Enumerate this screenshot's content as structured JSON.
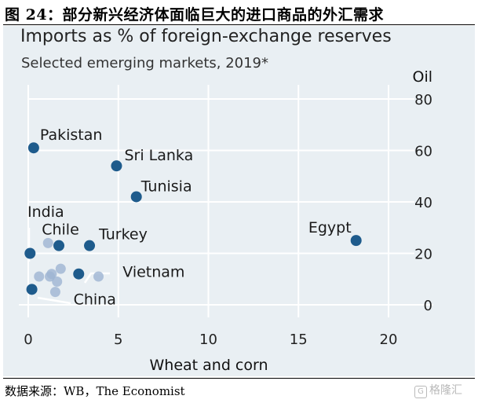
{
  "figure": {
    "title": "图 24：部分新兴经济体面临巨大的进口商品的外汇需求",
    "source": "数据来源：WB，The Economist",
    "watermark": "格隆汇"
  },
  "chart_data": {
    "type": "scatter",
    "title": "Imports as % of foreign-exchange reserves",
    "subtitle": "Selected emerging markets, 2019*",
    "xlabel": "Wheat and corn",
    "ylabel": "Oil",
    "xlim": [
      0,
      20
    ],
    "ylim": [
      0,
      80
    ],
    "xticks": [
      0,
      5,
      10,
      15,
      20
    ],
    "yticks": [
      0,
      20,
      40,
      60,
      80
    ],
    "grid": true,
    "colors": {
      "highlight": "#1e5b8c",
      "other": "#9db4d2",
      "grid": "#ffffff",
      "panel": "#e9eff3"
    },
    "points": [
      {
        "label": "Pakistan",
        "x": 0.3,
        "y": 61,
        "highlight": true
      },
      {
        "label": "Sri Lanka",
        "x": 4.9,
        "y": 54,
        "highlight": true
      },
      {
        "label": "Tunisia",
        "x": 6.0,
        "y": 42,
        "highlight": true
      },
      {
        "label": "Egypt",
        "x": 18.2,
        "y": 25,
        "highlight": true
      },
      {
        "label": "Turkey",
        "x": 3.4,
        "y": 23,
        "highlight": true
      },
      {
        "label": "Chile",
        "x": 1.7,
        "y": 23,
        "highlight": true
      },
      {
        "label": "India",
        "x": 0.1,
        "y": 20,
        "highlight": true
      },
      {
        "label": "Vietnam",
        "x": 2.8,
        "y": 12,
        "highlight": true
      },
      {
        "label": "China",
        "x": 0.2,
        "y": 6,
        "highlight": true
      },
      {
        "label": "",
        "x": 1.1,
        "y": 24,
        "highlight": false
      },
      {
        "label": "",
        "x": 0.6,
        "y": 11,
        "highlight": false
      },
      {
        "label": "",
        "x": 1.2,
        "y": 11,
        "highlight": false
      },
      {
        "label": "",
        "x": 1.3,
        "y": 12,
        "highlight": false
      },
      {
        "label": "",
        "x": 1.8,
        "y": 14,
        "highlight": false
      },
      {
        "label": "",
        "x": 1.6,
        "y": 9,
        "highlight": false
      },
      {
        "label": "",
        "x": 1.5,
        "y": 5,
        "highlight": false
      },
      {
        "label": "",
        "x": 3.9,
        "y": 11,
        "highlight": false
      }
    ]
  }
}
